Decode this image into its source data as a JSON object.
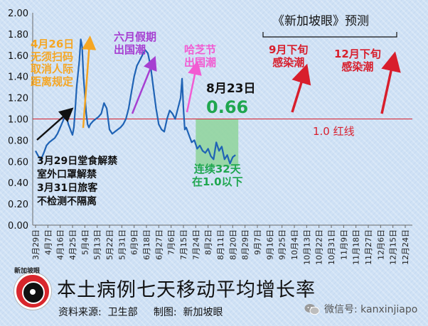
{
  "chart_data": {
    "type": "line",
    "title": "本土病例七天移动平均增长率",
    "xlabel": "",
    "ylabel": "",
    "ylim": [
      0,
      2.0
    ],
    "yticks": [
      0.0,
      0.2,
      0.4,
      0.6,
      0.8,
      1.0,
      1.2,
      1.4,
      1.6,
      1.8,
      2.0
    ],
    "x_tick_labels": [
      "3月29日",
      "4月7日",
      "4月16日",
      "4月25日",
      "5月4日",
      "5月13日",
      "5月22日",
      "5月31日",
      "6月9日",
      "6月18日",
      "6月27日",
      "7月6日",
      "7月15日",
      "7月24日",
      "8月2日",
      "8月11日",
      "8月20日",
      "8月29日",
      "9月7日",
      "9月16日",
      "9月25日",
      "10月4日",
      "10月13日",
      "10月22日",
      "10月31日",
      "11月9日",
      "11月18日",
      "11月27日",
      "12月6日",
      "12月15日",
      "12月24日"
    ],
    "series": [
      {
        "x": [
          0,
          2,
          4,
          6,
          8,
          10,
          12,
          14,
          16,
          18,
          20,
          22,
          24,
          26,
          27,
          28,
          29,
          30,
          32,
          33,
          34,
          35,
          37,
          38,
          39,
          40,
          42,
          44,
          46,
          48,
          50,
          52,
          54,
          56,
          58,
          60,
          62,
          64,
          66,
          68,
          70,
          72,
          74,
          76,
          78,
          80,
          82,
          84,
          86,
          88,
          90,
          92,
          94,
          96,
          98,
          100,
          102,
          104,
          106,
          107,
          108,
          109,
          110,
          112,
          114,
          116,
          118,
          120,
          122,
          124,
          126,
          128,
          130,
          132,
          134,
          136,
          138,
          140,
          142,
          144,
          146
        ],
        "values": [
          0.7,
          0.65,
          0.62,
          0.68,
          0.75,
          0.78,
          0.8,
          0.82,
          0.86,
          0.92,
          0.98,
          1.05,
          0.95,
          0.88,
          0.85,
          0.92,
          1.1,
          1.3,
          1.55,
          1.75,
          1.68,
          1.4,
          1.05,
          0.95,
          0.92,
          0.95,
          0.98,
          1.0,
          1.02,
          1.05,
          1.15,
          1.1,
          0.9,
          0.86,
          0.88,
          0.9,
          0.92,
          0.95,
          1.0,
          1.1,
          1.25,
          1.4,
          1.5,
          1.55,
          1.6,
          1.65,
          1.62,
          1.5,
          1.3,
          1.1,
          0.95,
          0.9,
          0.88,
          1.0,
          1.08,
          1.05,
          1.0,
          1.1,
          1.2,
          1.38,
          1.1,
          0.9,
          0.92,
          0.85,
          0.78,
          0.8,
          0.72,
          0.75,
          0.7,
          0.68,
          0.72,
          0.65,
          0.62,
          0.78,
          0.7,
          0.74,
          0.62,
          0.66,
          0.58,
          0.64,
          0.66
        ]
      }
    ],
    "reference_line": {
      "y": 1.0,
      "label": "1.0 红线",
      "color": "#d81e2c"
    },
    "highlight_region": {
      "x0": 117,
      "x1": 146,
      "label": "连续32天\n在1.0以下"
    },
    "line_color": "#1f63b5",
    "grid": false
  },
  "annotations": {
    "apr26": "4月26日\n无须扫码\n取消人际\n距离规定",
    "june_holiday": "六月假期\n出国潮",
    "hajj": "哈芝节\n出国潮",
    "aug23_date": "8月23日",
    "aug23_value": "0.66",
    "mar_notes": "3月29日堂食解禁\n室外口罩解禁\n3月31日旅客\n不检测不隔离",
    "forecast_title": "《新加坡眼》预测",
    "sep_wave": "9月下旬\n感染潮",
    "dec_wave": "12月下旬\n感染潮"
  },
  "colors": {
    "orange": "#f5a623",
    "purple": "#a63fd1",
    "pink": "#f25bd2",
    "red": "#d81e2c",
    "green_text": "#1fa64f",
    "green_fill": "#8ed49a"
  },
  "footer": {
    "title": "本土病例七天移动平均增长率",
    "source": "资料来源:  卫生部     制图:  新加坡眼",
    "wechat": "微信号: kanxinjiapo",
    "logo_text": "新加坡眼"
  }
}
